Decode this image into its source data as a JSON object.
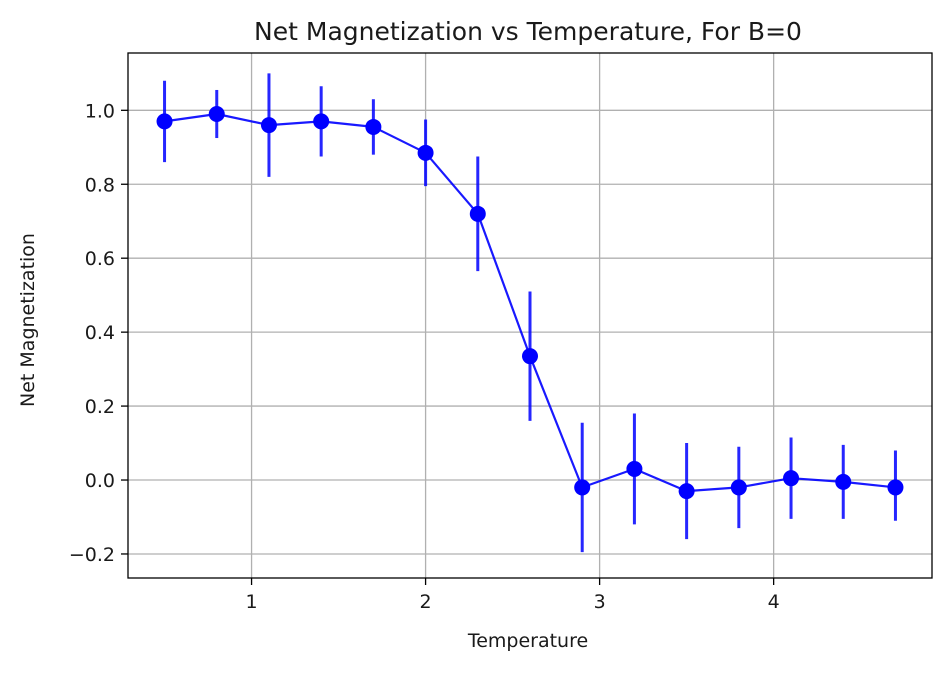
{
  "chart_data": {
    "type": "line",
    "title": "Net Magnetization vs Temperature, For B=0",
    "xlabel": "Temperature",
    "ylabel": "Net Magnetization",
    "xlim": [
      0.29,
      4.91
    ],
    "ylim": [
      -0.265,
      1.155
    ],
    "xticks": [
      1,
      2,
      3,
      4
    ],
    "yticks": [
      -0.2,
      0.0,
      0.2,
      0.4,
      0.6,
      0.8,
      1.0
    ],
    "ytick_labels": [
      "−0.2",
      "0.0",
      "0.2",
      "0.4",
      "0.6",
      "0.8",
      "1.0"
    ],
    "grid": true,
    "series": [
      {
        "color": "#0000ff",
        "marker": "circle",
        "error_bars": true,
        "x": [
          0.5,
          0.8,
          1.1,
          1.4,
          1.7,
          2.0,
          2.3,
          2.6,
          2.9,
          3.2,
          3.5,
          3.8,
          4.1,
          4.4,
          4.7
        ],
        "y": [
          0.97,
          0.99,
          0.96,
          0.97,
          0.955,
          0.885,
          0.72,
          0.335,
          -0.02,
          0.03,
          -0.03,
          -0.02,
          0.005,
          -0.005,
          -0.02
        ],
        "yerr_low": [
          0.11,
          0.065,
          0.14,
          0.095,
          0.075,
          0.09,
          0.155,
          0.175,
          0.175,
          0.15,
          0.13,
          0.11,
          0.11,
          0.1,
          0.09
        ],
        "yerr_high": [
          0.11,
          0.065,
          0.14,
          0.095,
          0.075,
          0.09,
          0.155,
          0.175,
          0.175,
          0.15,
          0.13,
          0.11,
          0.11,
          0.1,
          0.1
        ]
      }
    ]
  }
}
